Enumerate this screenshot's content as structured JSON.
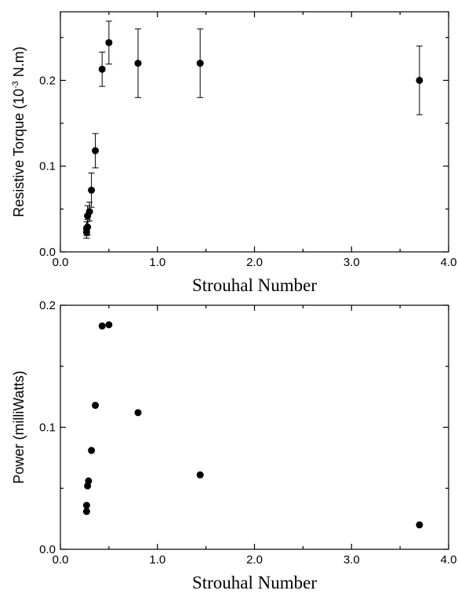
{
  "chart_data": [
    {
      "type": "scatter",
      "xlabel": "Strouhal Number",
      "ylabel": {
        "prefix": "Resistive Torque (10",
        "sup": "-3",
        "suffix": " N.m)"
      },
      "xlim": [
        0.0,
        4.0
      ],
      "ylim": [
        0.0,
        0.28
      ],
      "xticks": [
        "0.0",
        "1.0",
        "2.0",
        "3.0",
        "4.0"
      ],
      "xtick_values": [
        0,
        1,
        2,
        3,
        4
      ],
      "yticks": [
        "0.0",
        "0.1",
        "0.2"
      ],
      "ytick_values": [
        0,
        0.1,
        0.2
      ],
      "minor_x_step": 0.5,
      "minor_y_step": 0.05,
      "error_bars": true,
      "points": [
        {
          "x": 0.27,
          "y": 0.023,
          "err": 0.007
        },
        {
          "x": 0.27,
          "y": 0.027,
          "err": 0.008
        },
        {
          "x": 0.28,
          "y": 0.029,
          "err": 0.009
        },
        {
          "x": 0.28,
          "y": 0.042,
          "err": 0.012
        },
        {
          "x": 0.3,
          "y": 0.047,
          "err": 0.011
        },
        {
          "x": 0.32,
          "y": 0.072,
          "err": 0.02
        },
        {
          "x": 0.36,
          "y": 0.118,
          "err": 0.02
        },
        {
          "x": 0.43,
          "y": 0.213,
          "err": 0.02
        },
        {
          "x": 0.5,
          "y": 0.244,
          "err": 0.025
        },
        {
          "x": 0.8,
          "y": 0.22,
          "err": 0.04
        },
        {
          "x": 1.44,
          "y": 0.22,
          "err": 0.04
        },
        {
          "x": 3.7,
          "y": 0.2,
          "err": 0.04
        }
      ]
    },
    {
      "type": "scatter",
      "xlabel": "Strouhal Number",
      "ylabel": {
        "prefix": "Power (milliWatts)",
        "sup": "",
        "suffix": ""
      },
      "xlim": [
        0.0,
        4.0
      ],
      "ylim": [
        0.0,
        0.2
      ],
      "xticks": [
        "0.0",
        "1.0",
        "2.0",
        "3.0",
        "4.0"
      ],
      "xtick_values": [
        0,
        1,
        2,
        3,
        4
      ],
      "yticks": [
        "0.0",
        "0.1",
        "0.2"
      ],
      "ytick_values": [
        0,
        0.1,
        0.2
      ],
      "minor_x_step": 0.5,
      "minor_y_step": 0.05,
      "error_bars": false,
      "points": [
        {
          "x": 0.27,
          "y": 0.031
        },
        {
          "x": 0.27,
          "y": 0.036
        },
        {
          "x": 0.28,
          "y": 0.052
        },
        {
          "x": 0.29,
          "y": 0.056
        },
        {
          "x": 0.32,
          "y": 0.081
        },
        {
          "x": 0.36,
          "y": 0.118
        },
        {
          "x": 0.43,
          "y": 0.183
        },
        {
          "x": 0.5,
          "y": 0.184
        },
        {
          "x": 0.8,
          "y": 0.112
        },
        {
          "x": 1.44,
          "y": 0.061
        },
        {
          "x": 3.7,
          "y": 0.02
        }
      ]
    }
  ]
}
